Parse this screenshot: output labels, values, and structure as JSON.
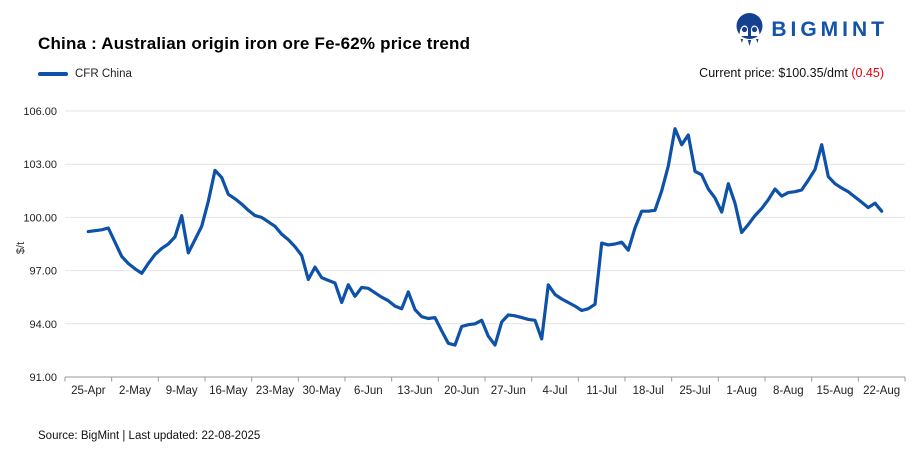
{
  "header": {
    "title": "China : Australian origin iron ore Fe-62% price trend",
    "brand": "BIGMINT",
    "current_price_label": "Current price: ",
    "current_price_value": "$100.35/dmt ",
    "current_price_change": "(0.45)"
  },
  "legend": {
    "series_label": "CFR China"
  },
  "footer": {
    "source_text": "Source: BigMint | Last updated: 22-08-2025"
  },
  "colors": {
    "series_line": "#0d52a8",
    "brand_blue": "#1254a8",
    "logo_blue": "#14418f",
    "change_red": "#e60012",
    "gridline": "#e4e4e4",
    "axis": "#999999"
  },
  "chart_data": {
    "type": "line",
    "title": "China : Australian origin iron ore Fe-62% price trend",
    "ylabel": "$/t",
    "ylim": [
      91,
      106
    ],
    "y_ticks": [
      91,
      94,
      97,
      100,
      103,
      106
    ],
    "grid": true,
    "legend_position": "top-left",
    "x_tick_labels": [
      "25-Apr",
      "2-May",
      "9-May",
      "16-May",
      "23-May",
      "30-May",
      "6-Jun",
      "13-Jun",
      "20-Jun",
      "27-Jun",
      "4-Jul",
      "11-Jul",
      "18-Jul",
      "25-Jul",
      "1-Aug",
      "8-Aug",
      "15-Aug",
      "22-Aug"
    ],
    "points_per_tick": 7,
    "series": [
      {
        "name": "CFR China",
        "color": "#0d52a8",
        "start_date": "25-Apr",
        "end_date": "22-Aug",
        "values": [
          99.2,
          99.25,
          99.3,
          99.4,
          98.6,
          97.8,
          97.4,
          97.1,
          96.85,
          97.4,
          97.9,
          98.25,
          98.5,
          98.9,
          100.1,
          98.0,
          98.75,
          99.5,
          100.9,
          102.65,
          102.25,
          101.3,
          101.05,
          100.75,
          100.4,
          100.1,
          100.0,
          99.75,
          99.5,
          99.05,
          98.75,
          98.35,
          97.85,
          96.5,
          97.2,
          96.6,
          96.45,
          96.3,
          95.2,
          96.2,
          95.55,
          96.05,
          96.0,
          95.75,
          95.5,
          95.3,
          95.0,
          94.85,
          95.8,
          94.8,
          94.4,
          94.3,
          94.35,
          93.6,
          92.9,
          92.8,
          93.85,
          93.95,
          94.0,
          94.2,
          93.3,
          92.8,
          94.1,
          94.5,
          94.45,
          94.35,
          94.25,
          94.2,
          93.15,
          96.2,
          95.65,
          95.4,
          95.2,
          95.0,
          94.75,
          94.85,
          95.1,
          98.55,
          98.45,
          98.5,
          98.6,
          98.15,
          99.4,
          100.35,
          100.35,
          100.4,
          101.5,
          102.9,
          105.0,
          104.1,
          104.65,
          102.6,
          102.4,
          101.6,
          101.1,
          100.3,
          101.9,
          100.8,
          99.15,
          99.6,
          100.1,
          100.5,
          101.0,
          101.6,
          101.2,
          101.4,
          101.45,
          101.55,
          102.1,
          102.7,
          104.1,
          102.3,
          101.9,
          101.65,
          101.45,
          101.15,
          100.85,
          100.55,
          100.8,
          100.35
        ]
      }
    ]
  }
}
